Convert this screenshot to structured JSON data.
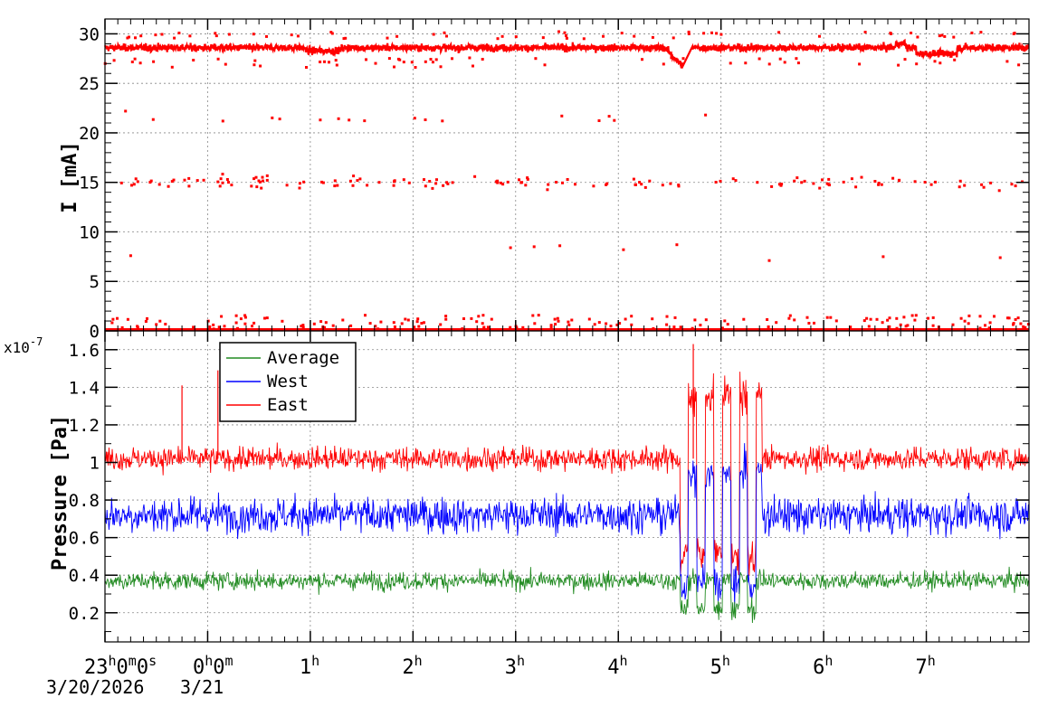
{
  "colors": {
    "current": "#ff0000",
    "average": "#228b22",
    "west": "#0000ff",
    "east": "#ff0000",
    "grid": "#888888",
    "axis": "#000000"
  },
  "time_axis": {
    "date_label": "3/20/2026",
    "date_label_2": "3/21",
    "tick_labels": [
      {
        "h": -1,
        "main": "23",
        "sup": "h",
        "main2": "0",
        "sup2": "m",
        "main3": "0",
        "sup3": "s"
      },
      {
        "h": 0,
        "main": "0",
        "sup": "h",
        "main2": "0",
        "sup2": "m"
      },
      {
        "h": 1,
        "main": "1",
        "sup": "h"
      },
      {
        "h": 2,
        "main": "2",
        "sup": "h"
      },
      {
        "h": 3,
        "main": "3",
        "sup": "h"
      },
      {
        "h": 4,
        "main": "4",
        "sup": "h"
      },
      {
        "h": 5,
        "main": "5",
        "sup": "h"
      },
      {
        "h": 6,
        "main": "6",
        "sup": "h"
      },
      {
        "h": 7,
        "main": "7",
        "sup": "h"
      }
    ]
  },
  "chart_data": [
    {
      "type": "scatter",
      "ylabel": "I [mA]",
      "ylim": [
        0,
        31.5
      ],
      "xlim_hours": [
        -1,
        8.0
      ],
      "yticks": [
        0,
        5,
        10,
        15,
        20,
        25,
        30
      ],
      "grid": true,
      "series": [
        {
          "color": "#ff0000",
          "baseline_level": 28.6,
          "dip_hour": 4.6,
          "dip_min": 26.7,
          "scatter_levels": [
            0.8,
            15,
            21.5
          ],
          "outliers": [
            {
              "x": -0.8,
              "y": 22.2
            },
            {
              "x": -0.75,
              "y": 7.6
            },
            {
              "x": 2.95,
              "y": 8.4
            },
            {
              "x": 3.18,
              "y": 8.5
            },
            {
              "x": 3.43,
              "y": 8.6
            },
            {
              "x": 4.05,
              "y": 8.2
            },
            {
              "x": 4.57,
              "y": 8.7
            },
            {
              "x": 5.47,
              "y": 7.1
            },
            {
              "x": 6.58,
              "y": 7.5
            },
            {
              "x": 7.72,
              "y": 7.4
            },
            {
              "x": 4.85,
              "y": 21.8
            },
            {
              "x": 3.45,
              "y": 21.7
            }
          ]
        }
      ]
    },
    {
      "type": "line",
      "ylabel": "Pressure [Pa]",
      "exponent_label": "x10",
      "exponent_power": "-7",
      "ylim": [
        0.045,
        1.7
      ],
      "xlim_hours": [
        -1,
        8.0
      ],
      "yticks": [
        0.2,
        0.4,
        0.6,
        0.8,
        1,
        1.2,
        1.4,
        1.6
      ],
      "ytick_labels": [
        "0.2",
        "0.4",
        "0.6",
        "0.8",
        "1",
        "1.2",
        "1.4",
        "1.6"
      ],
      "grid": true,
      "legend": {
        "placement": "top-left",
        "entries": [
          {
            "name": "Average",
            "color": "#228b22"
          },
          {
            "name": "West",
            "color": "#0000ff"
          },
          {
            "name": "East",
            "color": "#ff0000"
          }
        ]
      },
      "series": [
        {
          "name": "Average",
          "color": "#228b22",
          "level": 0.37,
          "noise": 0.06
        },
        {
          "name": "West",
          "color": "#0000ff",
          "level": 0.72,
          "noise": 0.12
        },
        {
          "name": "East",
          "color": "#ff0000",
          "level": 1.02,
          "noise": 0.08,
          "spikes": [
            {
              "x": -0.25,
              "y": 1.41
            },
            {
              "x": 0.1,
              "y": 1.49
            },
            {
              "x": 4.73,
              "y": 1.63
            }
          ]
        }
      ],
      "event_window_hours": [
        4.6,
        5.4
      ]
    }
  ]
}
